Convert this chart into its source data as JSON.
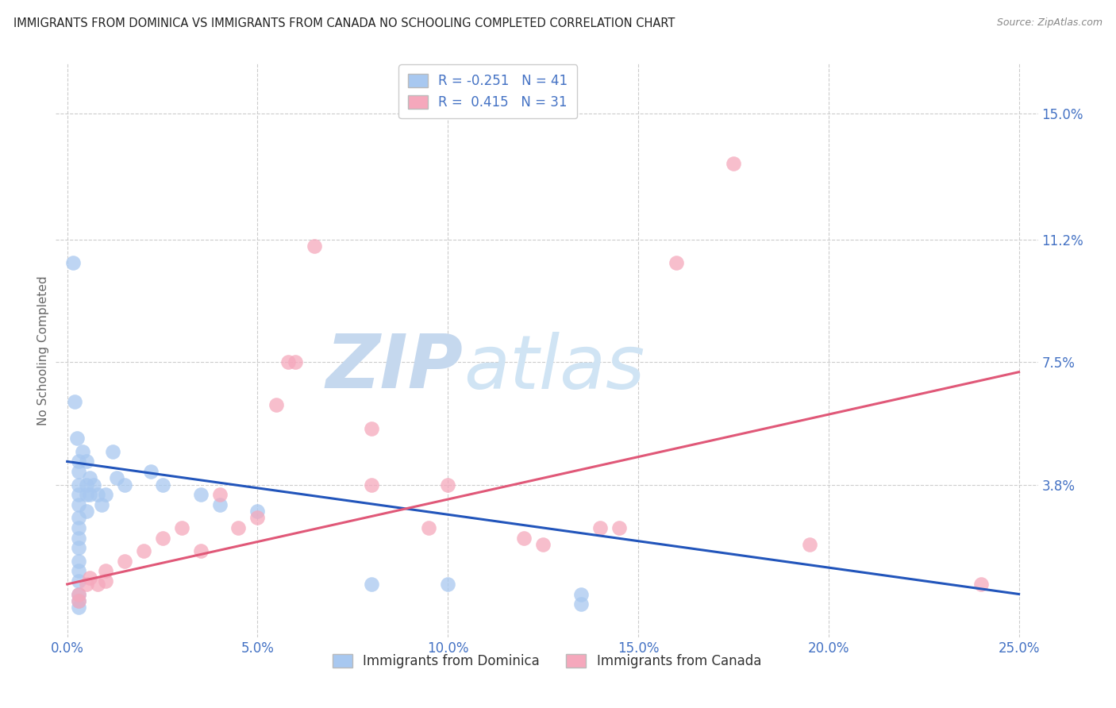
{
  "title": "IMMIGRANTS FROM DOMINICA VS IMMIGRANTS FROM CANADA NO SCHOOLING COMPLETED CORRELATION CHART",
  "source": "Source: ZipAtlas.com",
  "ylabel": "No Schooling Completed",
  "x_ticks": [
    0.0,
    5.0,
    10.0,
    15.0,
    20.0,
    25.0
  ],
  "y_ticks": [
    3.8,
    7.5,
    11.2,
    15.0
  ],
  "xlim": [
    -0.3,
    25.5
  ],
  "ylim": [
    -0.8,
    16.5
  ],
  "dominica_color": "#a8c8f0",
  "canada_color": "#f5a8bc",
  "dominica_line_color": "#2255bb",
  "canada_line_color": "#e05878",
  "background_color": "#ffffff",
  "grid_color": "#cccccc",
  "title_color": "#222222",
  "axis_label_color": "#4472c4",
  "watermark_color": "#c5d8ee",
  "dominica_points": [
    [
      0.15,
      10.5
    ],
    [
      0.2,
      6.3
    ],
    [
      0.25,
      5.2
    ],
    [
      0.3,
      4.5
    ],
    [
      0.3,
      4.2
    ],
    [
      0.3,
      3.8
    ],
    [
      0.3,
      3.5
    ],
    [
      0.3,
      3.2
    ],
    [
      0.3,
      2.8
    ],
    [
      0.3,
      2.5
    ],
    [
      0.3,
      2.2
    ],
    [
      0.3,
      1.9
    ],
    [
      0.3,
      1.5
    ],
    [
      0.3,
      1.2
    ],
    [
      0.3,
      0.9
    ],
    [
      0.3,
      0.5
    ],
    [
      0.3,
      0.3
    ],
    [
      0.3,
      0.1
    ],
    [
      0.4,
      4.8
    ],
    [
      0.5,
      4.5
    ],
    [
      0.5,
      3.8
    ],
    [
      0.5,
      3.5
    ],
    [
      0.5,
      3.0
    ],
    [
      0.6,
      4.0
    ],
    [
      0.6,
      3.5
    ],
    [
      0.7,
      3.8
    ],
    [
      0.8,
      3.5
    ],
    [
      0.9,
      3.2
    ],
    [
      1.0,
      3.5
    ],
    [
      1.2,
      4.8
    ],
    [
      1.3,
      4.0
    ],
    [
      1.5,
      3.8
    ],
    [
      2.2,
      4.2
    ],
    [
      2.5,
      3.8
    ],
    [
      3.5,
      3.5
    ],
    [
      4.0,
      3.2
    ],
    [
      5.0,
      3.0
    ],
    [
      8.0,
      0.8
    ],
    [
      10.0,
      0.8
    ],
    [
      13.5,
      0.5
    ],
    [
      13.5,
      0.2
    ]
  ],
  "canada_points": [
    [
      0.3,
      0.5
    ],
    [
      0.3,
      0.3
    ],
    [
      0.5,
      0.8
    ],
    [
      0.6,
      1.0
    ],
    [
      0.8,
      0.8
    ],
    [
      1.0,
      1.2
    ],
    [
      1.0,
      0.9
    ],
    [
      1.5,
      1.5
    ],
    [
      2.0,
      1.8
    ],
    [
      2.5,
      2.2
    ],
    [
      3.0,
      2.5
    ],
    [
      3.5,
      1.8
    ],
    [
      4.0,
      3.5
    ],
    [
      4.5,
      2.5
    ],
    [
      5.0,
      2.8
    ],
    [
      5.5,
      6.2
    ],
    [
      6.5,
      11.0
    ],
    [
      8.0,
      3.8
    ],
    [
      9.5,
      2.5
    ],
    [
      10.0,
      3.8
    ],
    [
      12.0,
      2.2
    ],
    [
      12.5,
      2.0
    ],
    [
      14.0,
      2.5
    ],
    [
      14.5,
      2.5
    ],
    [
      16.0,
      10.5
    ],
    [
      17.5,
      13.5
    ],
    [
      19.5,
      2.0
    ],
    [
      24.0,
      0.8
    ],
    [
      5.8,
      7.5
    ],
    [
      6.0,
      7.5
    ],
    [
      8.0,
      5.5
    ]
  ],
  "bottom_legend": [
    "Immigrants from Dominica",
    "Immigrants from Canada"
  ]
}
